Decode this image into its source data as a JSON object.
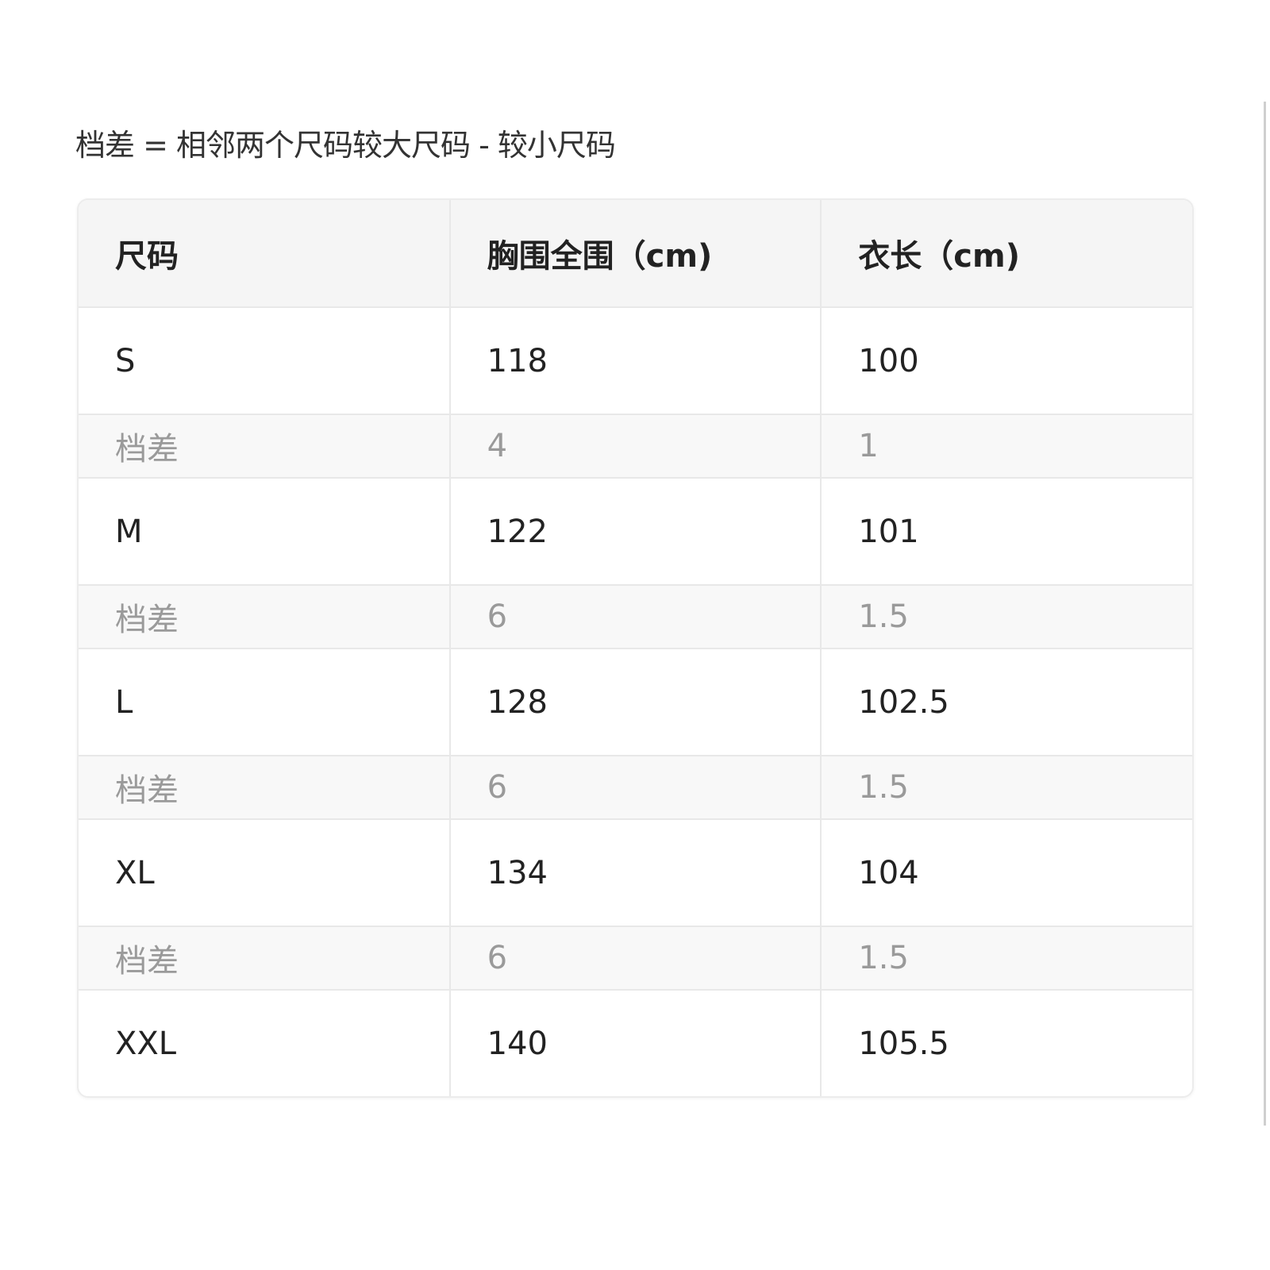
{
  "note": "档差 = 相邻两个尺码较大尺码 - 较小尺码",
  "table": {
    "headers": [
      "尺码",
      "胸围全围（cm)",
      "衣长（cm)"
    ],
    "rows": [
      {
        "type": "size",
        "cells": [
          "S",
          "118",
          "100"
        ]
      },
      {
        "type": "diff",
        "cells": [
          "档差",
          "4",
          "1"
        ]
      },
      {
        "type": "size",
        "cells": [
          "M",
          "122",
          "101"
        ]
      },
      {
        "type": "diff",
        "cells": [
          "档差",
          "6",
          "1.5"
        ]
      },
      {
        "type": "size",
        "cells": [
          "L",
          "128",
          "102.5"
        ]
      },
      {
        "type": "diff",
        "cells": [
          "档差",
          "6",
          "1.5"
        ]
      },
      {
        "type": "size",
        "cells": [
          "XL",
          "134",
          "104"
        ]
      },
      {
        "type": "diff",
        "cells": [
          "档差",
          "6",
          "1.5"
        ]
      },
      {
        "type": "size",
        "cells": [
          "XXL",
          "140",
          "105.5"
        ]
      }
    ]
  }
}
